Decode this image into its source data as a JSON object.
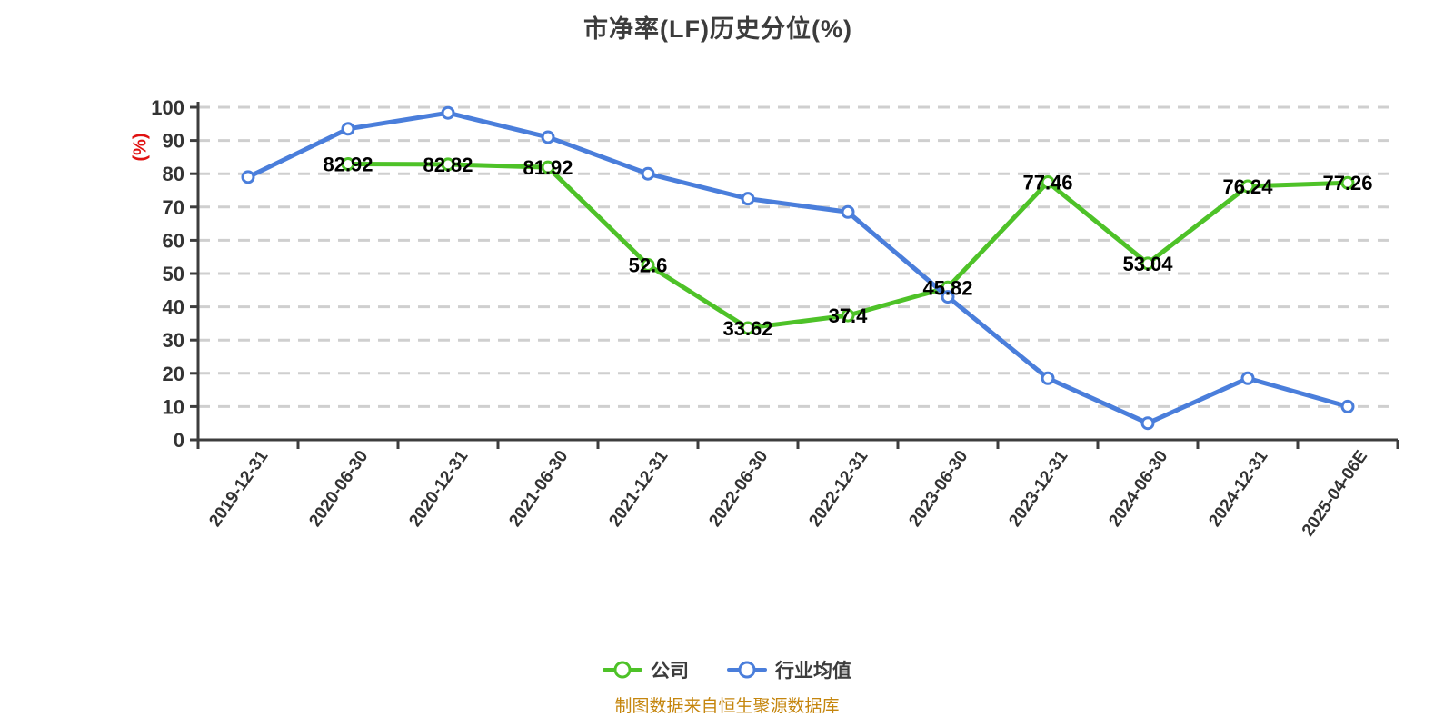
{
  "chart": {
    "background": "#ffffff",
    "title_color": "#3c3c3c"
  },
  "chart_data": {
    "type": "line",
    "title": "市净率(LF)历史分位(%)",
    "ylabel": "(%)",
    "ylabel_color": "#e01212",
    "ylim": [
      0,
      100
    ],
    "ytick_interval": 10,
    "grid": "horizontal dashed",
    "grid_color": "#cfcfcf",
    "axis_color": "#3d3d3d",
    "point_label_color": "#000000",
    "legend_position": "bottom",
    "categories": [
      "2019-12-31",
      "2020-06-30",
      "2020-12-31",
      "2021-06-30",
      "2021-12-31",
      "2022-06-30",
      "2022-12-31",
      "2023-06-30",
      "2023-12-31",
      "2024-06-30",
      "2024-12-31",
      "2025-04-06E"
    ],
    "series": [
      {
        "name": "公司",
        "color": "#4ec228",
        "show_point_labels": true,
        "values": [
          null,
          82.92,
          82.82,
          81.92,
          52.6,
          33.62,
          37.4,
          45.82,
          77.46,
          53.04,
          76.24,
          77.26
        ]
      },
      {
        "name": "行业均值",
        "color": "#4a7edb",
        "show_point_labels": false,
        "values_note": "unlabeled in chart; estimated from pixel positions",
        "values": [
          79,
          93.5,
          98.3,
          91,
          80,
          72.5,
          68.5,
          43,
          18.5,
          5,
          18.5,
          10
        ]
      }
    ],
    "source_note": "制图数据来自恒生聚源数据库"
  }
}
